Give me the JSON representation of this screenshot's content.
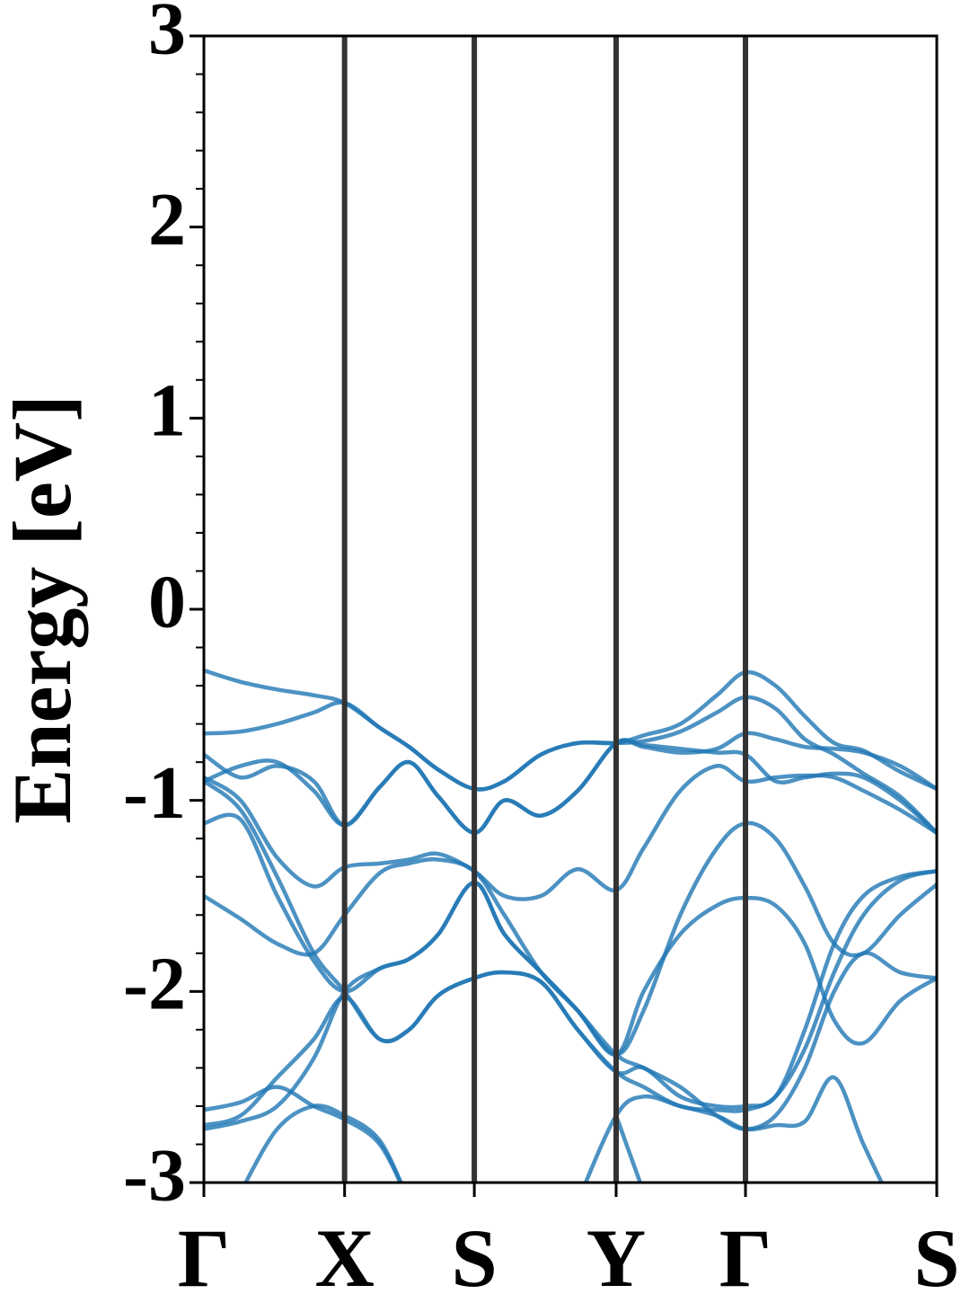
{
  "chart_data": {
    "type": "line",
    "y_label": "Energy [eV]",
    "ylim": [
      -3,
      3
    ],
    "yticks": [
      -3,
      -2,
      -1,
      0,
      1,
      2,
      3
    ],
    "y_minor_ticks": [
      -2.8,
      -2.6,
      -2.4,
      -2.2,
      -1.8,
      -1.6,
      -1.4,
      -1.2,
      -0.8,
      -0.6,
      -0.4,
      -0.2,
      0.2,
      0.4,
      0.6,
      0.8,
      1.2,
      1.4,
      1.6,
      1.8,
      2.2,
      2.4,
      2.6,
      2.8
    ],
    "xlim": [
      0,
      1
    ],
    "xticks": [
      {
        "value": 0,
        "label": "Γ"
      },
      {
        "value": 0.192,
        "label": "X"
      },
      {
        "value": 0.369,
        "label": "S"
      },
      {
        "value": 0.5625,
        "label": "Y"
      },
      {
        "value": 0.739,
        "label": "Γ"
      },
      {
        "value": 1,
        "label": "S"
      }
    ],
    "x": [
      0,
      0.05,
      0.1,
      0.15,
      0.192,
      0.24,
      0.28,
      0.32,
      0.369,
      0.41,
      0.46,
      0.51,
      0.5625,
      0.6,
      0.65,
      0.7,
      0.739,
      0.78,
      0.82,
      0.86,
      0.9,
      0.95,
      1
    ],
    "series": [
      {
        "color": "#1f77b4",
        "values": [
          -0.32,
          -0.38,
          -0.42,
          -0.45,
          -0.49,
          -0.62,
          -0.72,
          -0.84,
          -0.94,
          -0.9,
          -0.76,
          -0.7,
          -0.7,
          -0.66,
          -0.6,
          -0.45,
          -0.33,
          -0.4,
          -0.56,
          -0.7,
          -0.74,
          -0.85,
          -0.94
        ]
      },
      {
        "color": "#1f77b4",
        "values": [
          -0.65,
          -0.64,
          -0.6,
          -0.54,
          -0.49,
          -0.62,
          -0.72,
          -0.84,
          -0.94,
          -0.9,
          -0.76,
          -0.7,
          -0.7,
          -0.69,
          -0.64,
          -0.54,
          -0.46,
          -0.52,
          -0.68,
          -0.76,
          -0.86,
          -0.98,
          -1.17
        ]
      },
      {
        "color": "#1f77b4",
        "values": [
          -0.76,
          -0.88,
          -0.82,
          -0.9,
          -1.13,
          -0.93,
          -0.8,
          -0.98,
          -1.17,
          -1.0,
          -1.08,
          -0.95,
          -0.7,
          -0.71,
          -0.73,
          -0.75,
          -0.76,
          -0.9,
          -0.88,
          -0.86,
          -0.88,
          -1.0,
          -1.17
        ]
      },
      {
        "color": "#1f77b4",
        "values": [
          -0.9,
          -0.82,
          -0.8,
          -0.95,
          -1.13,
          -0.93,
          -0.8,
          -0.98,
          -1.17,
          -1.0,
          -1.08,
          -0.95,
          -0.7,
          -0.72,
          -0.75,
          -0.73,
          -0.65,
          -0.68,
          -0.72,
          -0.73,
          -0.75,
          -0.82,
          -0.94
        ]
      },
      {
        "color": "#1f77b4",
        "values": [
          -0.9,
          -1.05,
          -1.4,
          -1.8,
          -2.0,
          -2.25,
          -2.2,
          -2.02,
          -1.93,
          -1.9,
          -1.95,
          -2.2,
          -2.42,
          -2.4,
          -2.55,
          -2.6,
          -2.6,
          -2.55,
          -2.2,
          -1.75,
          -1.5,
          -1.4,
          -1.37
        ]
      },
      {
        "color": "#1f77b4",
        "values": [
          -1.5,
          -1.62,
          -1.75,
          -1.8,
          -1.6,
          -1.38,
          -1.33,
          -1.31,
          -1.37,
          -1.6,
          -1.9,
          -2.1,
          -2.33,
          -2.0,
          -1.7,
          -1.55,
          -1.51,
          -1.55,
          -1.75,
          -2.15,
          -2.27,
          -2.05,
          -1.93
        ]
      },
      {
        "color": "#1f77b4",
        "values": [
          -0.88,
          -1.0,
          -1.3,
          -1.45,
          -1.35,
          -1.33,
          -1.31,
          -1.28,
          -1.37,
          -1.5,
          -1.5,
          -1.36,
          -1.47,
          -1.25,
          -0.95,
          -0.82,
          -0.9,
          -0.88,
          -0.87,
          -0.88,
          -0.95,
          -1.05,
          -1.17
        ]
      },
      {
        "color": "#1f77b4",
        "values": [
          -1.12,
          -1.1,
          -1.5,
          -1.84,
          -2.0,
          -1.88,
          -1.83,
          -1.7,
          -1.43,
          -1.7,
          -1.9,
          -2.1,
          -2.33,
          -2.1,
          -1.6,
          -1.25,
          -1.12,
          -1.2,
          -1.45,
          -1.75,
          -1.8,
          -1.6,
          -1.44
        ]
      },
      {
        "color": "#1f77b4",
        "values": [
          -2.62,
          -2.58,
          -2.5,
          -2.6,
          -2.67,
          -2.8,
          -3.1,
          null,
          null,
          null,
          null,
          -3.1,
          -2.65,
          -2.55,
          -2.6,
          -2.65,
          -2.72,
          -2.7,
          -2.68,
          -2.45,
          -2.8,
          -3.2,
          null
        ]
      },
      {
        "color": "#1f77b4",
        "values": [
          -2.7,
          -2.65,
          -2.45,
          -2.25,
          -2.03,
          -2.25,
          -2.2,
          -2.02,
          -1.93,
          -1.9,
          -1.95,
          -2.2,
          -2.42,
          -2.5,
          -2.6,
          -2.62,
          -2.62,
          -2.55,
          -2.3,
          -1.9,
          -1.6,
          -1.42,
          -1.37
        ]
      },
      {
        "color": "#1f77b4",
        "values": [
          -2.72,
          -2.68,
          -2.6,
          -2.35,
          -2.0,
          -1.88,
          -1.83,
          -1.7,
          -1.43,
          -1.7,
          -1.9,
          -2.1,
          -2.33,
          -2.4,
          -2.5,
          -2.65,
          -2.72,
          -2.65,
          -2.4,
          -2.0,
          -1.8,
          -1.9,
          -1.93
        ]
      },
      {
        "color": "#1f77b4",
        "values": [
          null,
          -3.05,
          -2.72,
          -2.6,
          -2.65,
          -2.78,
          -3.1,
          null,
          null,
          null,
          null,
          null,
          -2.65,
          -3.05,
          null,
          null,
          null,
          null,
          null,
          null,
          null,
          null,
          null
        ]
      }
    ]
  }
}
